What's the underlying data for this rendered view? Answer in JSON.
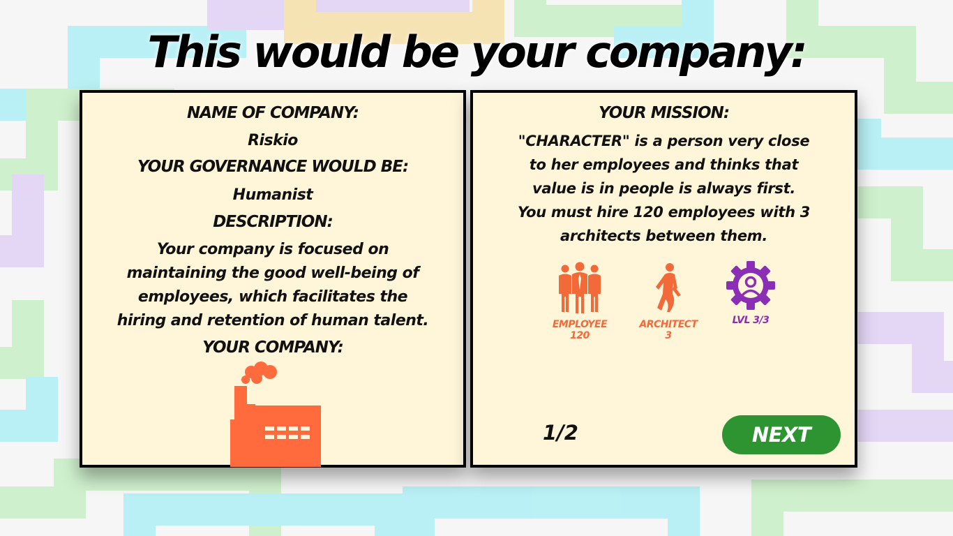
{
  "title": "This would be your company:",
  "left_panel": {
    "company_name_heading": "NAME OF COMPANY:",
    "company_name": "Riskio",
    "governance_heading": "YOUR GOVERNANCE WOULD BE:",
    "governance": "Humanist",
    "description_heading": "DESCRIPTION:",
    "description_lines": [
      "Your company is focused on",
      "maintaining the good well-being of",
      "employees, which facilitates the",
      "hiring and retention of human talent."
    ],
    "your_company_heading": "YOUR COMPANY:",
    "company_icon": "factory-icon"
  },
  "right_panel": {
    "mission_heading": "YOUR MISSION:",
    "mission_lines": [
      "\"CHARACTER\" is a person very close",
      "to her employees and thinks that",
      "value is in people is always first.",
      "You must hire 120 employees with 3",
      "architects between them."
    ],
    "requirements": [
      {
        "icon": "employees-icon",
        "label": "EMPLOYEE",
        "value": "120",
        "color": "#f26a3a"
      },
      {
        "icon": "architect-icon",
        "label": "ARCHITECT",
        "value": "3",
        "color": "#f26a3a"
      },
      {
        "icon": "level-gear-icon",
        "label": "LVL 3/3",
        "color": "#8a2fb5"
      }
    ],
    "page_indicator": "1/2",
    "next_label": "NEXT"
  },
  "colors": {
    "panel_bg": "#fff5d9",
    "accent_orange": "#ff6b3c",
    "next_green": "#2e9431",
    "level_purple": "#8a2fb5"
  }
}
